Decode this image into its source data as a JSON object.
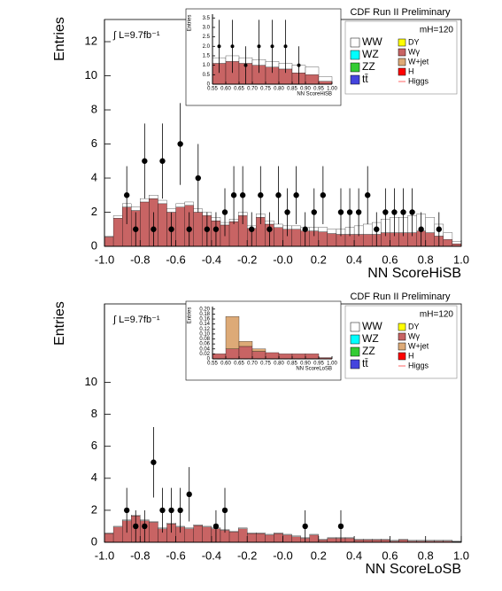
{
  "chart_data": [
    {
      "type": "histogram",
      "experiment": "CDF Run II Preliminary",
      "mass_label": "mH=120",
      "luminosity": "∫ L=9.7fb⁻¹",
      "x_label": "NN ScoreHiSB",
      "y_label": "Entries",
      "xlim": [
        -1.0,
        1.0
      ],
      "ylim": [
        0,
        13.3
      ],
      "xticks": [
        {
          "value": -1.0,
          "label": "-1.0"
        },
        -0.8,
        -0.6,
        -0.4,
        -0.2,
        {
          "value": 0,
          "label": "-0.0"
        },
        0.2,
        0.4,
        0.6,
        0.8,
        {
          "value": 1.0,
          "label": "1.0"
        }
      ],
      "yticks": [
        0,
        2,
        4,
        6,
        8,
        10,
        12
      ],
      "bins": [
        -1,
        -0.95,
        -0.9,
        -0.85,
        -0.8,
        -0.75,
        -0.7,
        -0.65,
        -0.6,
        -0.55,
        -0.5,
        -0.45,
        -0.4,
        -0.35,
        -0.3,
        -0.25,
        -0.2,
        -0.15,
        -0.1,
        -0.05,
        0,
        0.05,
        0.1,
        0.15,
        0.2,
        0.25,
        0.3,
        0.35,
        0.4,
        0.45,
        0.5,
        0.55,
        0.6,
        0.65,
        0.7,
        0.75,
        0.8,
        0.85,
        0.9,
        0.95,
        1
      ],
      "series": [
        {
          "name": "Wγ",
          "color": "#c86464",
          "values": [
            0.55,
            1.65,
            2.3,
            2.1,
            2.6,
            2.8,
            2.5,
            2.0,
            2.3,
            2.4,
            2.0,
            1.8,
            1.5,
            1.25,
            1.45,
            1.8,
            1.05,
            1.7,
            1.3,
            1.1,
            1.0,
            1.0,
            0.9,
            0.9,
            0.85,
            0.75,
            0.7,
            0.7,
            0.7,
            0.7,
            0.7,
            0.8,
            0.8,
            0.8,
            0.8,
            0.9,
            0.8,
            0.6,
            0.4,
            0.15
          ]
        },
        {
          "name": "WW",
          "color": "#ffffff",
          "values": [
            0.05,
            0.15,
            0.2,
            0.2,
            0.2,
            0.2,
            0.2,
            0.2,
            0.2,
            0.2,
            0.2,
            0.2,
            0.2,
            0.15,
            0.15,
            0.2,
            0.15,
            0.2,
            0.2,
            0.2,
            0.2,
            0.2,
            0.2,
            0.2,
            0.25,
            0.25,
            0.3,
            0.4,
            0.5,
            0.6,
            0.7,
            0.8,
            0.9,
            0.9,
            1.0,
            1.0,
            0.9,
            0.7,
            0.4,
            0.15
          ]
        }
      ],
      "points": {
        "x": [
          -0.875,
          -0.825,
          -0.775,
          -0.725,
          -0.675,
          -0.625,
          -0.575,
          -0.525,
          -0.475,
          -0.425,
          -0.375,
          -0.325,
          -0.275,
          -0.225,
          -0.175,
          -0.125,
          -0.075,
          -0.025,
          0.025,
          0.075,
          0.125,
          0.175,
          0.225,
          0.325,
          0.375,
          0.425,
          0.475,
          0.525,
          0.575,
          0.625,
          0.675,
          0.725,
          0.775,
          0.875
        ],
        "y": [
          3,
          1,
          5,
          1,
          5,
          1,
          6,
          1,
          4,
          1,
          1,
          2,
          3,
          3,
          1,
          3,
          1,
          3,
          2,
          3,
          1,
          2,
          3,
          2,
          2,
          2,
          3,
          1,
          2,
          2,
          2,
          2,
          1,
          1
        ],
        "errors": [
          1.7,
          1,
          2.2,
          1,
          2.2,
          1,
          2.4,
          1,
          2,
          1,
          1,
          1.4,
          1.7,
          1.7,
          1,
          1.7,
          1,
          1.7,
          1.4,
          1.7,
          1,
          1.4,
          1.7,
          1.4,
          1.4,
          1.4,
          1.7,
          1,
          1.4,
          1.4,
          1.4,
          1.4,
          1,
          1
        ]
      },
      "legend": [
        {
          "name": "WW",
          "color": "#ffffff"
        },
        {
          "name": "WZ",
          "color": "#00ffff"
        },
        {
          "name": "ZZ",
          "color": "#33cc33"
        },
        {
          "name": "tt̄",
          "color": "#4444dd"
        },
        {
          "name": "DY",
          "color": "#ffff00"
        },
        {
          "name": "Wγ",
          "color": "#c86464"
        },
        {
          "name": "W+jet",
          "color": "#ddaa77"
        },
        {
          "name": "H",
          "color": "#ff0000"
        },
        {
          "name": "Higgs",
          "color": "#ff6666"
        }
      ]
    },
    {
      "type": "histogram",
      "x_label": "NN ScoreHiSB",
      "y_label": "Entries",
      "xlim": [
        0.55,
        1.0
      ],
      "ylim": [
        0,
        3.7
      ],
      "xticks": [
        0.55,
        {
          "value": 0.6,
          "label": "0.60"
        },
        0.65,
        {
          "value": 0.7,
          "label": "0.70"
        },
        0.75,
        {
          "value": 0.8,
          "label": "0.80"
        },
        0.85,
        {
          "value": 0.9,
          "label": "0.90"
        },
        0.95,
        {
          "value": 1.0,
          "label": "1.00"
        }
      ],
      "yticks": [
        0,
        0.5,
        {
          "value": 1,
          "label": "1.0"
        },
        1.5,
        {
          "value": 2,
          "label": "2.0"
        },
        2.5,
        {
          "value": 3,
          "label": "3.0"
        },
        3.5
      ],
      "bins": [
        0.55,
        0.6,
        0.65,
        0.7,
        0.75,
        0.8,
        0.85,
        0.9,
        0.95,
        1.0
      ],
      "series": [
        {
          "name": "Wγ",
          "color": "#c86464",
          "values": [
            1.1,
            1.2,
            1.1,
            1.0,
            0.9,
            0.8,
            0.6,
            0.5,
            0.15
          ]
        },
        {
          "name": "WW",
          "color": "#ffffff",
          "values": [
            0.3,
            0.3,
            0.3,
            0.3,
            0.3,
            0.3,
            0.4,
            0.4,
            0.25
          ]
        }
      ],
      "points": {
        "x": [
          0.575,
          0.625,
          0.675,
          0.725,
          0.775,
          0.825,
          0.875
        ],
        "y": [
          2,
          2,
          1,
          2,
          2,
          2,
          1
        ],
        "errors": [
          1.4,
          1.4,
          1,
          1.4,
          1.4,
          1.4,
          1
        ]
      }
    },
    {
      "type": "histogram",
      "experiment": "CDF Run II Preliminary",
      "mass_label": "mH=120",
      "luminosity": "∫ L=9.7fb⁻¹",
      "x_label": "NN ScoreLoSB",
      "y_label": "Entries",
      "xlim": [
        -1.0,
        1.0
      ],
      "ylim": [
        0,
        14.9
      ],
      "xticks": [
        {
          "value": -1.0,
          "label": "-1.0"
        },
        -0.8,
        -0.6,
        -0.4,
        -0.2,
        {
          "value": 0,
          "label": "-0.0"
        },
        0.2,
        0.4,
        0.6,
        0.8,
        {
          "value": 1.0,
          "label": "1.0"
        }
      ],
      "yticks": [
        0,
        2,
        4,
        6,
        8,
        10
      ],
      "bins": [
        -1,
        -0.95,
        -0.9,
        -0.85,
        -0.8,
        -0.75,
        -0.7,
        -0.65,
        -0.6,
        -0.55,
        -0.5,
        -0.45,
        -0.4,
        -0.35,
        -0.3,
        -0.25,
        -0.2,
        -0.15,
        -0.1,
        -0.05,
        0,
        0.05,
        0.1,
        0.15,
        0.2,
        0.25,
        0.3,
        0.35,
        0.4,
        0.45,
        0.5,
        0.55,
        0.6,
        0.65,
        0.7,
        0.75,
        0.8,
        0.85,
        0.9,
        0.95,
        1
      ],
      "series": [
        {
          "name": "Wγ",
          "color": "#c86464",
          "values": [
            0.55,
            0.95,
            1.35,
            1.65,
            1.35,
            1.25,
            0.85,
            1.15,
            0.95,
            0.85,
            1.05,
            0.95,
            0.85,
            0.75,
            0.65,
            0.85,
            0.55,
            0.55,
            0.45,
            0.55,
            0.45,
            0.35,
            0.25,
            0.45,
            0.15,
            0.25,
            0.25,
            0.25,
            0.15,
            0.15,
            0.15,
            0.15,
            0.08,
            0.15,
            0.08,
            0.08,
            0.08,
            0.08,
            0.08,
            0.04
          ]
        },
        {
          "name": "WW",
          "color": "#ffffff",
          "values": [
            0.05,
            0.05,
            0.05,
            0.05,
            0.05,
            0.05,
            0.05,
            0.05,
            0.05,
            0.05,
            0.05,
            0.05,
            0.05,
            0.05,
            0.05,
            0.05,
            0.05,
            0.05,
            0.05,
            0.05,
            0.05,
            0.05,
            0.05,
            0.05,
            0.05,
            0.05,
            0.05,
            0.05,
            0.05,
            0.05,
            0.05,
            0.05,
            0.05,
            0.05,
            0.05,
            0.05,
            0.05,
            0.05,
            0.05,
            0.05
          ]
        }
      ],
      "points": {
        "x": [
          -0.875,
          -0.825,
          -0.775,
          -0.725,
          -0.675,
          -0.625,
          -0.575,
          -0.525,
          -0.375,
          -0.325,
          0.125,
          0.325
        ],
        "y": [
          2,
          1,
          1,
          5,
          2,
          2,
          2,
          3,
          1,
          2,
          1,
          1
        ],
        "errors": [
          1.4,
          1,
          1,
          2.2,
          1.4,
          1.4,
          1.4,
          1.7,
          1,
          1.4,
          1,
          1
        ]
      },
      "legend": [
        {
          "name": "WW",
          "color": "#ffffff"
        },
        {
          "name": "WZ",
          "color": "#00ffff"
        },
        {
          "name": "ZZ",
          "color": "#33cc33"
        },
        {
          "name": "tt̄",
          "color": "#4444dd"
        },
        {
          "name": "DY",
          "color": "#ffff00"
        },
        {
          "name": "Wγ",
          "color": "#c86464"
        },
        {
          "name": "W+jet",
          "color": "#ddaa77"
        },
        {
          "name": "H",
          "color": "#ff0000"
        },
        {
          "name": "Higgs",
          "color": "#ff6666"
        }
      ]
    },
    {
      "type": "histogram",
      "x_label": "NN ScoreLoSB",
      "y_label": "Entries",
      "xlim": [
        0.55,
        1.0
      ],
      "ylim": [
        0,
        0.21
      ],
      "xticks": [
        0.55,
        {
          "value": 0.6,
          "label": "0.60"
        },
        0.65,
        {
          "value": 0.7,
          "label": "0.70"
        },
        0.75,
        {
          "value": 0.8,
          "label": "0.80"
        },
        0.85,
        {
          "value": 0.9,
          "label": "0.90"
        },
        0.95,
        {
          "value": 1.0,
          "label": "1.00"
        }
      ],
      "yticks": [
        0,
        0.02,
        0.04,
        0.06,
        0.08,
        {
          "value": 0.1,
          "label": "0.10"
        },
        0.12,
        0.14,
        0.16,
        0.18,
        {
          "value": 0.2,
          "label": "0.20"
        }
      ],
      "bins": [
        0.55,
        0.6,
        0.65,
        0.7,
        0.75,
        0.8,
        0.85,
        0.9,
        0.95,
        1.0
      ],
      "series": [
        {
          "name": "Wγ",
          "color": "#c86464",
          "values": [
            0.02,
            0.04,
            0.05,
            0.03,
            0.025,
            0.02,
            0.02,
            0.02,
            0.005
          ]
        },
        {
          "name": "W+jet",
          "color": "#ddaa77",
          "values": [
            0,
            0.13,
            0.02,
            0.01,
            0,
            0,
            0,
            0,
            0
          ]
        }
      ]
    }
  ]
}
